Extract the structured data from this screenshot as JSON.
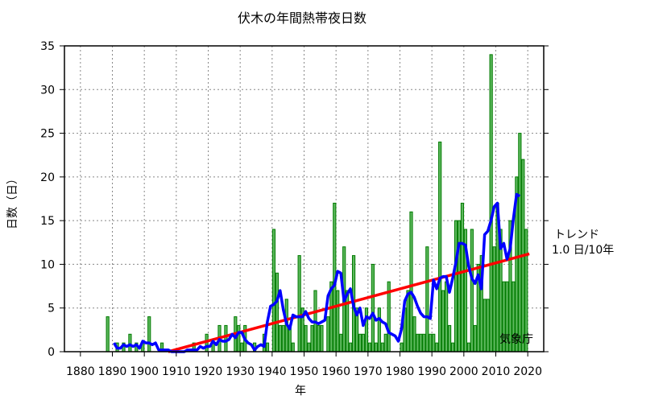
{
  "chart_data": {
    "type": "bar",
    "title": "伏木の年間熱帯夜日数",
    "xlabel": "年",
    "ylabel": "日数（日）",
    "xlim": [
      1875,
      2025
    ],
    "ylim": [
      0,
      35
    ],
    "grid": true,
    "xticks": [
      1880,
      1890,
      1900,
      1910,
      1920,
      1930,
      1940,
      1950,
      1960,
      1970,
      1980,
      1990,
      2000,
      2010,
      2020
    ],
    "yticks": [
      0,
      5,
      10,
      15,
      20,
      25,
      30,
      35
    ],
    "colors": {
      "bar": "#5cb85c",
      "bar_edge": "#007a00",
      "moving_average": "#0000ff",
      "trend": "#ff0000"
    },
    "start_year": 1888,
    "values": [
      4,
      0,
      0,
      1,
      0,
      1,
      0,
      2,
      0,
      1,
      0,
      1,
      0,
      4,
      0,
      0,
      0,
      1,
      0,
      0,
      0,
      0,
      0,
      0,
      0,
      0,
      0,
      1,
      0,
      0,
      0,
      2,
      0,
      1,
      0,
      3,
      0,
      3,
      0,
      0,
      4,
      3,
      1,
      3,
      0,
      0,
      1,
      0,
      0,
      2,
      1,
      0,
      14,
      9,
      3,
      3,
      6,
      3,
      1,
      0,
      11,
      5,
      3,
      1,
      3,
      7,
      3,
      3,
      0,
      4,
      8,
      17,
      7,
      2,
      12,
      7,
      1,
      11,
      5,
      2,
      2,
      5,
      1,
      10,
      1,
      5,
      1,
      2,
      8,
      0,
      0,
      0,
      1,
      5,
      7,
      16,
      4,
      2,
      2,
      2,
      12,
      2,
      2,
      1,
      24,
      7,
      8,
      3,
      1,
      15,
      15,
      17,
      14,
      1,
      14,
      3,
      10,
      11,
      6,
      6,
      34,
      12,
      17,
      14,
      8,
      8,
      15,
      8,
      20,
      25,
      22,
      14
    ],
    "moving_average_window": 5,
    "trend": {
      "x": [
        1907,
        2020
      ],
      "y": [
        0,
        11.2
      ]
    },
    "annotations": {
      "trend_label": "トレンド",
      "trend_value": "1.0 日/10年",
      "source": "気象庁"
    }
  }
}
